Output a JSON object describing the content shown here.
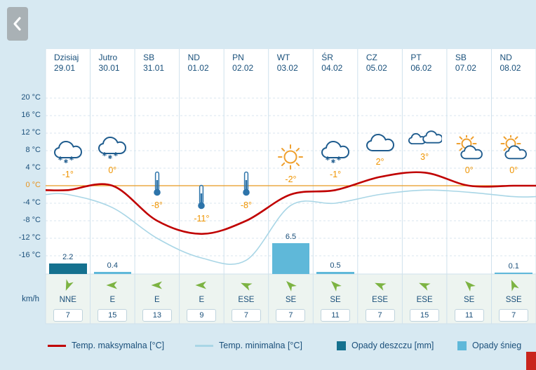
{
  "back_button": {
    "icon": "chevron-left"
  },
  "axis": {
    "unit": "km/h",
    "ticks": [
      {
        "label": "20 °C",
        "value": 20
      },
      {
        "label": "16 °C",
        "value": 16
      },
      {
        "label": "12 °C",
        "value": 12
      },
      {
        "label": "8 °C",
        "value": 8
      },
      {
        "label": "4 °C",
        "value": 4
      },
      {
        "label": "0 °C",
        "value": 0
      },
      {
        "label": "-4 °C",
        "value": -4
      },
      {
        "label": "-8 °C",
        "value": -8
      },
      {
        "label": "-12 °C",
        "value": -12
      },
      {
        "label": "-16 °C",
        "value": -16
      }
    ]
  },
  "days": [
    {
      "name": "Dzisiaj",
      "date": "29.01",
      "icon": "snow-cloud",
      "temp_label": "-1°"
    },
    {
      "name": "Jutro",
      "date": "30.01",
      "icon": "snow-cloud",
      "temp_label": "0°"
    },
    {
      "name": "SB",
      "date": "31.01",
      "icon": "thermometer",
      "temp_label": "-8°"
    },
    {
      "name": "ND",
      "date": "01.02",
      "icon": "thermometer",
      "temp_label": "-11°"
    },
    {
      "name": "PN",
      "date": "02.02",
      "icon": "thermometer",
      "temp_label": "-8°"
    },
    {
      "name": "WT",
      "date": "03.02",
      "icon": "sun",
      "temp_label": "-2°"
    },
    {
      "name": "ŚR",
      "date": "04.02",
      "icon": "snow-cloud",
      "temp_label": "-1°"
    },
    {
      "name": "CZ",
      "date": "05.02",
      "icon": "cloud",
      "temp_label": "2°"
    },
    {
      "name": "PT",
      "date": "06.02",
      "icon": "clouds",
      "temp_label": "3°"
    },
    {
      "name": "SB",
      "date": "07.02",
      "icon": "sun-cloud",
      "temp_label": "0°"
    },
    {
      "name": "ND",
      "date": "08.02",
      "icon": "sun-cloud",
      "temp_label": "0°"
    }
  ],
  "chart_data": {
    "type": "line",
    "categories": [
      "Dzisiaj 29.01",
      "Jutro 30.01",
      "SB 31.01",
      "ND 01.02",
      "PN 02.02",
      "WT 03.02",
      "ŚR 04.02",
      "CZ 05.02",
      "PT 06.02",
      "SB 07.02",
      "ND 08.02"
    ],
    "series": [
      {
        "name": "Temp. maksymalna [°C]",
        "color": "#c00000",
        "values": [
          -1,
          0,
          -8,
          -11,
          -8,
          -2,
          -1,
          2,
          3,
          0,
          0
        ]
      },
      {
        "name": "Temp. minimalna [°C]",
        "color": "#a9d6e6",
        "values": [
          -2,
          -5,
          -12,
          -16.5,
          -17,
          -4.5,
          -4,
          -2,
          -1,
          -1.5,
          -2.5
        ]
      }
    ],
    "ylabel": "°C",
    "ylim": [
      -18,
      22
    ],
    "yticks": [
      20,
      16,
      12,
      8,
      4,
      0,
      -4,
      -8,
      -12,
      -16
    ],
    "grid": true,
    "precipitation_mm": [
      2.2,
      0.4,
      null,
      null,
      null,
      6.5,
      0.5,
      null,
      null,
      null,
      0.1
    ],
    "precipitation_type": [
      "rain",
      "snow",
      null,
      null,
      null,
      "snow",
      "snow",
      null,
      null,
      null,
      "snow"
    ],
    "wind_direction": [
      "NNE",
      "E",
      "E",
      "E",
      "ESE",
      "SE",
      "SE",
      "ESE",
      "ESE",
      "SE",
      "SSE"
    ],
    "wind_speed_kmh": [
      7,
      15,
      13,
      9,
      7,
      7,
      11,
      7,
      15,
      11,
      7
    ],
    "wind_unit": "km/h"
  },
  "legend": {
    "items": [
      {
        "label": "Temp. maksymalna [°C]",
        "marker": "line",
        "color": "#c00000"
      },
      {
        "label": "Temp. minimalna [°C]",
        "marker": "line",
        "color": "#a9d6e6"
      },
      {
        "label": "Opady deszczu [mm]",
        "marker": "square",
        "color": "#15718f"
      },
      {
        "label": "Opady śnieg",
        "marker": "square",
        "color": "#5fb8d9"
      }
    ]
  },
  "colors": {
    "temp_max": "#c00000",
    "temp_min": "#a9d6e6",
    "rain": "#15718f",
    "snow": "#5fb8d9",
    "temp_label": "#ef9400",
    "zero_line": "#e8991f",
    "navy_text": "#1a4f7a",
    "wind_arrow": "#7cb342"
  }
}
